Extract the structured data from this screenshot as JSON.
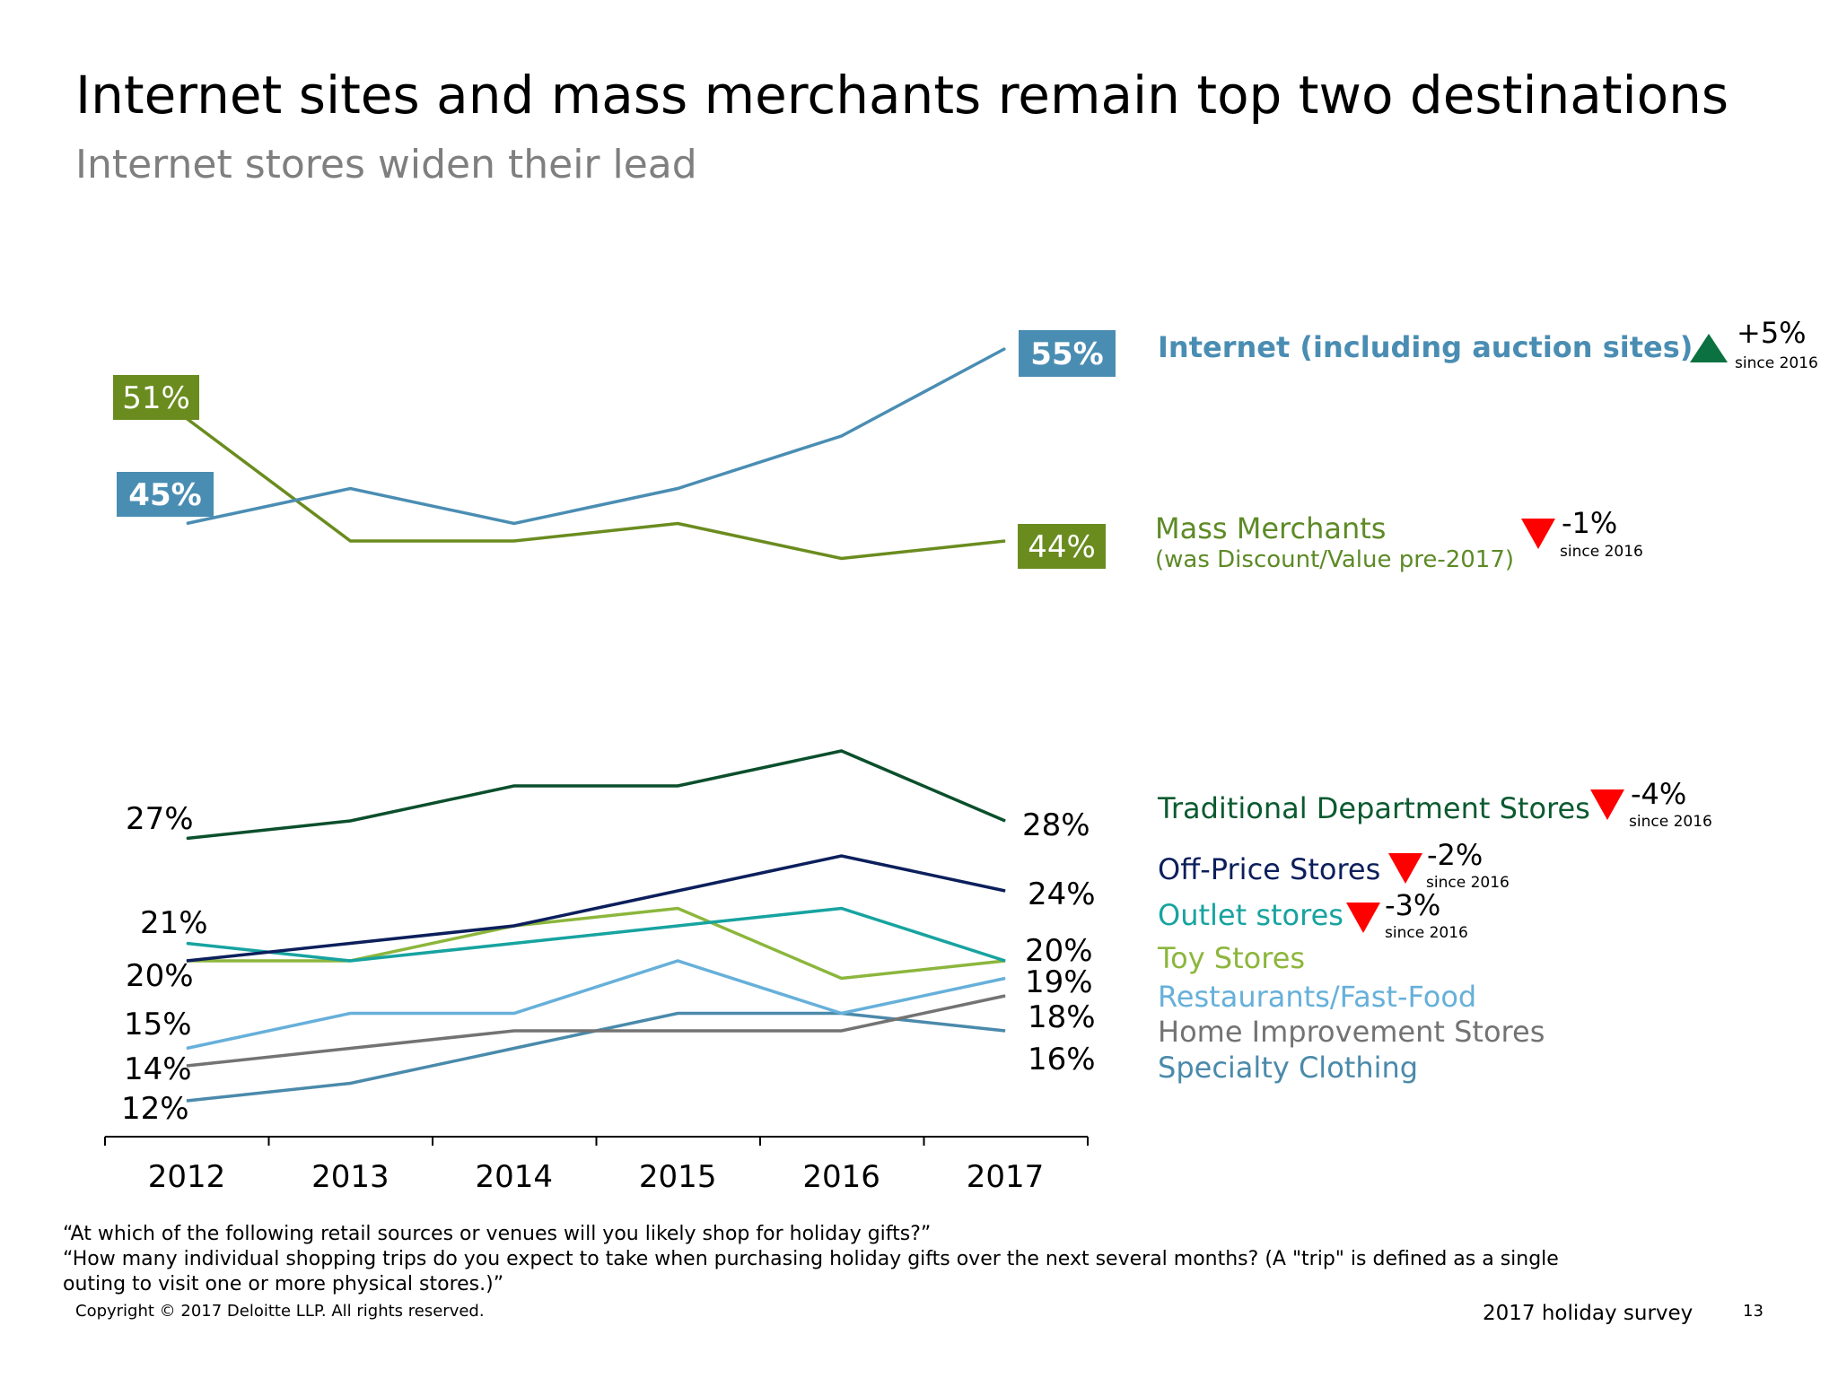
{
  "title": "Internet sites and mass merchants remain top two destinations",
  "subtitle": "Internet stores widen their lead",
  "chart_data": {
    "type": "line",
    "title": "Internet sites and mass merchants remain top two destinations",
    "subtitle": "Internet stores widen their lead",
    "xlabel": "",
    "ylabel": "",
    "categories": [
      "2012",
      "2013",
      "2014",
      "2015",
      "2016",
      "2017"
    ],
    "series": [
      {
        "key": "internet",
        "name": "Internet (including auction sites)",
        "color": "#4a8db3",
        "values": [
          45,
          47,
          45,
          47,
          50,
          55
        ],
        "start_label": "45%",
        "end_label": "55%",
        "labels_boxed": true,
        "change": "+5%",
        "direction": "up",
        "since": "since 2016"
      },
      {
        "key": "mass",
        "name": "Mass Merchants",
        "note": "(was Discount/Value pre-2017)",
        "color": "#6a8c1f",
        "values": [
          51,
          44,
          44,
          45,
          43,
          44
        ],
        "start_label": "51%",
        "end_label": "44%",
        "labels_boxed": true,
        "change": "-1%",
        "direction": "down",
        "since": "since 2016"
      },
      {
        "key": "dept",
        "name": "Traditional Department Stores",
        "color": "#0b4f2c",
        "values": [
          27,
          28,
          30,
          30,
          32,
          28
        ],
        "start_label": "27%",
        "end_label": "28%",
        "change": "-4%",
        "direction": "down",
        "since": "since 2016"
      },
      {
        "key": "offprice",
        "name": "Off-Price Stores",
        "color": "#0c1f5c",
        "values": [
          20,
          21,
          22,
          24,
          26,
          24
        ],
        "start_label": "",
        "end_label": "24%",
        "change": "-2%",
        "direction": "down",
        "since": "since 2016"
      },
      {
        "key": "outlet",
        "name": "Outlet stores",
        "color": "#17a3a0",
        "values": [
          21,
          20,
          21,
          22,
          23,
          20
        ],
        "start_label": "21%",
        "end_label": "",
        "change": "-3%",
        "direction": "down",
        "since": "since 2016"
      },
      {
        "key": "toy",
        "name": "Toy Stores",
        "color": "#8cb63c",
        "values": [
          20,
          20,
          22,
          23,
          19,
          20
        ],
        "start_label": "20%",
        "end_label": "20%"
      },
      {
        "key": "restaurants",
        "name": "Restaurants/Fast-Food",
        "color": "#66b0da",
        "values": [
          15,
          17,
          17,
          20,
          17,
          19
        ],
        "start_label": "15%",
        "end_label": "19%"
      },
      {
        "key": "home",
        "name": "Home Improvement Stores",
        "color": "#737373",
        "values": [
          14,
          15,
          16,
          16,
          16,
          18
        ],
        "start_label": "14%",
        "end_label": "18%"
      },
      {
        "key": "specialty",
        "name": "Specialty Clothing",
        "color": "#4a8aab",
        "values": [
          12,
          13,
          15,
          17,
          17,
          16
        ],
        "start_label": "12%",
        "end_label": "16%"
      }
    ]
  },
  "legend_colors": {
    "internet_text": "#4a8db3",
    "mass_text": "#5d8a26",
    "dept_text": "#0b5a30",
    "offprice_text": "#0c1f5c",
    "outlet_text": "#17a3a0",
    "toy_text": "#8cb63c",
    "restaurants_text": "#66b0da",
    "home_text": "#737373",
    "specialty_text": "#4a8aab"
  },
  "footnotes": [
    "“At which of the following retail sources or venues will you likely shop for holiday gifts?”",
    "“How many individual shopping trips do you expect to take when purchasing holiday gifts over the next several months? (A \"trip\" is defined as a single",
    "outing to visit one or more physical stores.)”"
  ],
  "copyright": "Copyright © 2017 Deloitte LLP. All rights reserved.",
  "survey": "2017 holiday survey",
  "page_number": "13"
}
